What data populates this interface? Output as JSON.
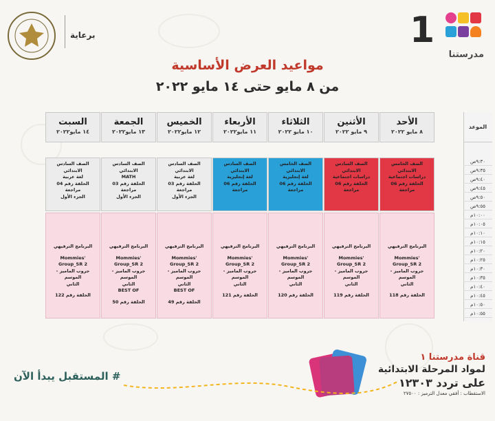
{
  "header": {
    "brand_number": "1",
    "brand_name": "مدرستنا",
    "sponsor_label": "برعاية"
  },
  "title": {
    "line1": "مواعيد العرض الأساسية",
    "line2": "من ٨ مايو حتى ١٤ مايو ٢٠٢٢"
  },
  "time_header": "الموعد",
  "times": [
    "٩:٣٠ص",
    "٩:٣٥ص",
    "٩:٤٠ص",
    "٩:٤٥ص",
    "٩:٥٠ص",
    "٩:٥٥ص",
    "١٠:٠٠م",
    "١٠:٠٥م",
    "١٠:١٠م",
    "١٠:١٥م",
    "١٠:٢٠م",
    "١٠:٢٥م",
    "١٠:٣٠م",
    "١٠:٣٥م",
    "١٠:٤٠م",
    "١٠:٤٥م",
    "١٠:٥٠م",
    "١٠:٥٥م"
  ],
  "days": [
    {
      "name": "الأحد",
      "date": "٨ مايو ٢٠٢٢",
      "slot1": [
        "الصف الخامس الابتدائي",
        "دراسات اجتماعية",
        "الحلقة رقم 06 مراجعة"
      ],
      "slot1_color": "#e23744",
      "slot2": [
        "البرنامج الترفيهي",
        "Mommies' Group_SR 2",
        "جروب الماميز - الموسم",
        "الثاني",
        "الحلقة رقم 118"
      ]
    },
    {
      "name": "الأثنين",
      "date": "٩ مايو ٢٠٢٢",
      "slot1": [
        "الصف السادس الابتدائي",
        "دراسات اجتماعية",
        "الحلقة رقم 06 مراجعة"
      ],
      "slot1_color": "#e23744",
      "slot2": [
        "البرنامج الترفيهي",
        "Mommies' Group_SR 2",
        "جروب الماميز - الموسم",
        "الثاني",
        "الحلقة رقم 119"
      ]
    },
    {
      "name": "الثلاثاء",
      "date": "١٠ مايو ٢٠٢٢",
      "slot1": [
        "الصف الخامس الابتدائي",
        "لغة إنجليزية",
        "الحلقة رقم 06 مراجعة"
      ],
      "slot1_color": "#2aa0d8",
      "slot2": [
        "البرنامج الترفيهي",
        "Mommies' Group_SR 2",
        "جروب الماميز - الموسم",
        "الثاني",
        "الحلقة رقم 120"
      ]
    },
    {
      "name": "الأربعاء",
      "date": "١١ مايو٢٠٢٢",
      "slot1": [
        "الصف السادس الابتدائي",
        "لغة إنجليزية",
        "الحلقة رقم 06 مراجعة"
      ],
      "slot1_color": "#2aa0d8",
      "slot2": [
        "البرنامج الترفيهي",
        "Mommies' Group_SR 2",
        "جروب الماميز - الموسم",
        "الثاني",
        "الحلقة رقم 121"
      ]
    },
    {
      "name": "الخميس",
      "date": "١٢ مايو٢٠٢٢",
      "slot1": [
        "الصف السادس الابتدائي",
        "لغة عربية",
        "الحلقة رقم 03 مراجعة",
        "الجزء الأول"
      ],
      "slot1_color": "#ececec",
      "slot2": [
        "البرنامج الترفيهي",
        "Mommies' Group_SR 2",
        "جروب الماميز - الموسم",
        "الثاني",
        "BEST OF",
        "الحلقة رقم 49"
      ]
    },
    {
      "name": "الجمعة",
      "date": "١٣ مايو٢٠٢٢",
      "slot1": [
        "الصف السادس الابتدائي",
        "MATH",
        "الحلقة رقم 03 مراجعة",
        "الجزء الأول"
      ],
      "slot1_color": "#ececec",
      "slot2": [
        "البرنامج الترفيهي",
        "Mommies' Group_SR 2",
        "جروب الماميز - الموسم",
        "الثاني",
        "BEST OF",
        "الحلقة رقم 50"
      ]
    },
    {
      "name": "السبت",
      "date": "١٤ مايو٢٠٢٢",
      "slot1": [
        "الصف السادس الابتدائي",
        "لغة عربية",
        "الحلقة رقم 04 مراجعة",
        "الجزء الأول"
      ],
      "slot1_color": "#ececec",
      "slot2": [
        "البرنامج الترفيهي",
        "Mommies' Group_SR 2",
        "جروب الماميز - الموسم",
        "الثاني",
        "الحلقة رقم 122"
      ]
    }
  ],
  "footer": {
    "channel_line1": "قناة مدرستنا ١",
    "channel_line2": "لمواد المرحلة الابتدائية",
    "channel_line3": "على تردد ١٢٣٠٣",
    "channel_line4": "الاستقطاب : أفقي معدل الترميز : ٢٧٥٠٠",
    "slogan": "# المستقبل يبدأ الآن"
  },
  "colors": {
    "red_slot": "#e23744",
    "blue_slot": "#2aa0d8",
    "pink_slot": "#f9dbe4",
    "title_red": "#c0392b"
  }
}
